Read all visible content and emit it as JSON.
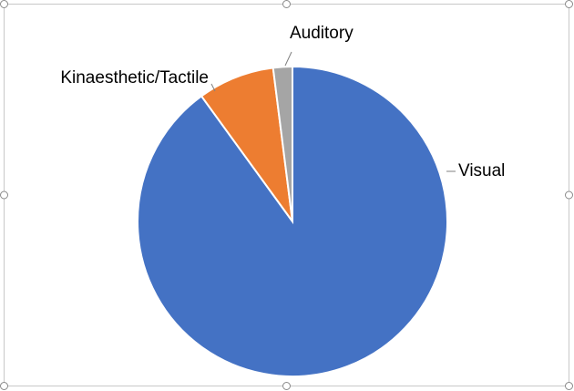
{
  "chart_data": {
    "type": "pie",
    "categories": [
      "Visual",
      "Kinaesthetic/Tactile",
      "Auditory"
    ],
    "values": [
      90,
      8,
      2
    ],
    "colors": [
      "#4472c4",
      "#ed7d31",
      "#a5a5a5"
    ],
    "start_angle": 0,
    "direction": "clockwise"
  }
}
